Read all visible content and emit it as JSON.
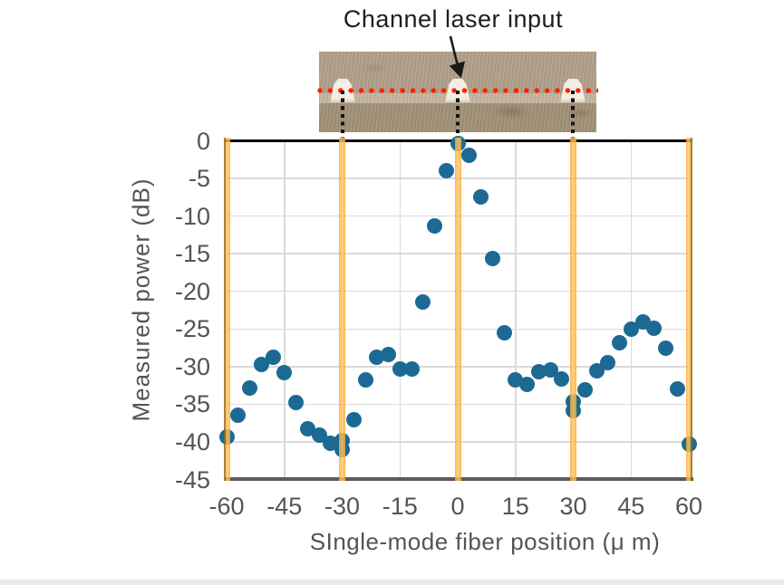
{
  "annotation": {
    "label": "Channel laser input"
  },
  "photo": {
    "description_name": "channel-facet-micrograph",
    "channel_count": 3,
    "channel_positions_um": [
      -30,
      0,
      30
    ]
  },
  "chart_data": {
    "type": "scatter",
    "title": "",
    "xlabel": "SIngle-mode fiber position (μ m)",
    "ylabel": "Measured power (dB)",
    "xlim": [
      -60,
      60
    ],
    "ylim": [
      -45,
      0
    ],
    "x_ticks": [
      -60,
      -45,
      -30,
      -15,
      0,
      15,
      30,
      45,
      60
    ],
    "y_ticks": [
      0,
      -5,
      -10,
      -15,
      -20,
      -25,
      -30,
      -35,
      -40,
      -45
    ],
    "grid": true,
    "gridlines_x": [
      -45,
      -15,
      15,
      45
    ],
    "channel_lines_x": [
      -60,
      -30,
      0,
      30,
      60
    ],
    "points": [
      [
        -60,
        -39.3
      ],
      [
        -57,
        -36.5
      ],
      [
        -54,
        -32.8
      ],
      [
        -51,
        -29.7
      ],
      [
        -48,
        -28.8
      ],
      [
        -45,
        -30.8
      ],
      [
        -42,
        -34.8
      ],
      [
        -39,
        -38.3
      ],
      [
        -36,
        -39.1
      ],
      [
        -33,
        -40.2
      ],
      [
        -30,
        -39.8
      ],
      [
        -30,
        -41.0
      ],
      [
        -27,
        -37.1
      ],
      [
        -24,
        -31.8
      ],
      [
        -21,
        -28.8
      ],
      [
        -18,
        -28.4
      ],
      [
        -15,
        -30.3
      ],
      [
        -12,
        -30.3
      ],
      [
        -9,
        -21.4
      ],
      [
        -6,
        -11.3
      ],
      [
        -3,
        -4.0
      ],
      [
        0,
        -0.4
      ],
      [
        3,
        -1.9
      ],
      [
        6,
        -7.4
      ],
      [
        9,
        -15.7
      ],
      [
        12,
        -25.5
      ],
      [
        15,
        -31.8
      ],
      [
        18,
        -32.4
      ],
      [
        21,
        -30.7
      ],
      [
        24,
        -30.4
      ],
      [
        27,
        -31.7
      ],
      [
        30,
        -34.6
      ],
      [
        30,
        -35.9
      ],
      [
        33,
        -33.1
      ],
      [
        36,
        -30.6
      ],
      [
        39,
        -29.5
      ],
      [
        42,
        -26.8
      ],
      [
        45,
        -25.0
      ],
      [
        48,
        -24.1
      ],
      [
        51,
        -24.9
      ],
      [
        54,
        -27.6
      ],
      [
        57,
        -33.0
      ],
      [
        60,
        -40.3
      ]
    ],
    "colors": {
      "dot": "#1c6a93",
      "channel_line": "#f6a82f",
      "channel_line_light": "#ffc868",
      "channel_line_dark_edge": "#8f6a1e",
      "grid": "#dadada",
      "red_dotted_line": "#ff1f00",
      "axis_text": "#545454",
      "title_text": "#1e1e1e"
    }
  }
}
